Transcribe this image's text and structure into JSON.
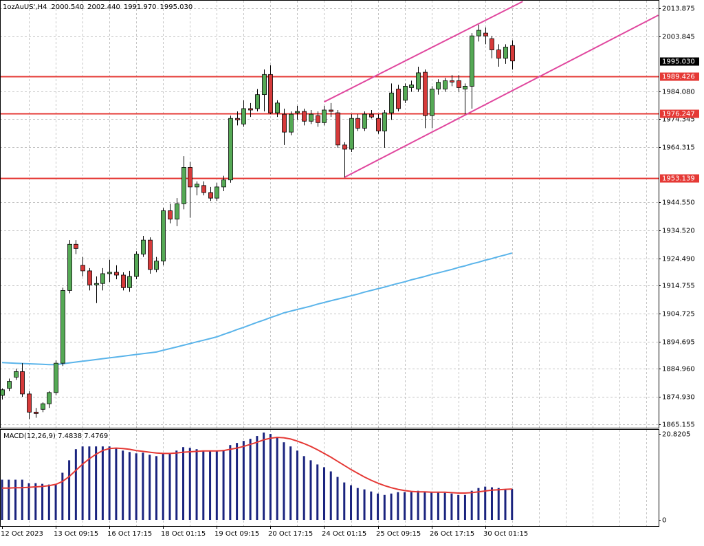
{
  "chart_data": {
    "type": "candlestick",
    "title": "1ozAuUS',H4",
    "header_values": [
      "2000.540",
      "2002.440",
      "1991.970",
      "1995.030"
    ],
    "categories": [
      "12 Oct 2023",
      null,
      null,
      null,
      null,
      null,
      null,
      null,
      "13 Oct 09:15",
      null,
      null,
      null,
      null,
      null,
      null,
      null,
      "16 Oct 17:15",
      null,
      null,
      null,
      null,
      null,
      null,
      null,
      "18 Oct 01:15",
      null,
      null,
      null,
      null,
      null,
      null,
      null,
      "19 Oct 09:15",
      null,
      null,
      null,
      null,
      null,
      null,
      null,
      "20 Oct 17:15",
      null,
      null,
      null,
      null,
      null,
      null,
      null,
      "24 Oct 01:15",
      null,
      null,
      null,
      null,
      null,
      null,
      null,
      "25 Oct 09:15",
      null,
      null,
      null,
      null,
      null,
      null,
      null,
      "26 Oct 17:15",
      null,
      null,
      null,
      null,
      null,
      null,
      null,
      "30 Oct 01:15",
      null,
      null,
      null,
      null
    ],
    "open": [
      1875.5,
      1878,
      1882,
      1884,
      1876,
      1869.5,
      1870.5,
      1872.5,
      1876.5,
      1887,
      1913,
      1929.5,
      1922,
      1920,
      1915,
      1915.5,
      1919,
      1919.5,
      1918.5,
      1914,
      1918,
      1926,
      1931,
      1920.5,
      1923.5,
      1941.5,
      1938.5,
      1944,
      1957,
      1950,
      1950.5,
      1948,
      1946,
      1950,
      1952.5,
      1974.5,
      1972.5,
      1978,
      1978,
      1983,
      1990.2,
      1976.5,
      1976,
      1969.6,
      1976.5,
      1977,
      1973.5,
      1975.5,
      1973,
      1977.5,
      1976.5,
      1965,
      1963.5,
      1974.5,
      1971,
      1976,
      1974.5,
      1970,
      1976.5,
      1985,
      1981,
      1985.5,
      1985,
      1991,
      1975.5,
      1985,
      1985,
      1988,
      1988,
      1985,
      1986,
      2004,
      2005,
      2003,
      1999,
      1996,
      2000.54
    ],
    "high": [
      1878,
      1881.5,
      1885,
      1887,
      1877,
      1871,
      1873,
      1877,
      1888,
      1914,
      1931,
      1931,
      1925,
      1921,
      1918,
      1921,
      1924,
      1922,
      1919.5,
      1920,
      1927,
      1932.5,
      1932,
      1925,
      1942.5,
      1944,
      1946,
      1961,
      1959,
      1952,
      1952,
      1950,
      1951.5,
      1954,
      1975.5,
      1977,
      1981,
      1980,
      1985,
      1992,
      1993.5,
      1981,
      1978,
      1977,
      1979,
      1978,
      1977.5,
      1977,
      1979,
      1980,
      1977.5,
      1966,
      1976,
      1976,
      1977,
      1977.5,
      1976,
      1977.5,
      1987,
      1986.5,
      1987,
      1988,
      1993,
      1992,
      1986,
      1988.5,
      1989,
      1990,
      1990,
      1987,
      2005,
      2008,
      2007,
      2004,
      2001,
      2001,
      2002.44
    ],
    "low": [
      1874,
      1877,
      1881,
      1875,
      1867,
      1867.5,
      1869.5,
      1871,
      1875.5,
      1886,
      1912,
      1926,
      1918,
      1913,
      1908.5,
      1913,
      1916,
      1917,
      1913,
      1912.5,
      1917,
      1925,
      1919,
      1919.5,
      1922,
      1937,
      1936,
      1942,
      1939,
      1947,
      1947,
      1945,
      1945,
      1948.5,
      1951.5,
      1972,
      1971.5,
      1975,
      1977,
      1977,
      1976,
      1975,
      1965,
      1968.5,
      1974,
      1972,
      1972.5,
      1971.5,
      1972,
      1975,
      1964,
      1953.4,
      1962.5,
      1970,
      1970,
      1974.5,
      1969,
      1964,
      1974,
      1977,
      1980,
      1984,
      1984,
      1971,
      1971,
      1983,
      1984,
      1986,
      1984,
      1976,
      1978,
      2002,
      2001,
      1996,
      1993,
      1994,
      1991.97
    ],
    "close": [
      1877.5,
      1880.5,
      1884,
      1876,
      1869.5,
      1869,
      1872.5,
      1876.5,
      1887,
      1913,
      1929.5,
      1928,
      1920,
      1915,
      1915.5,
      1919,
      1919.5,
      1918.5,
      1914,
      1918,
      1926,
      1931,
      1920.5,
      1923.5,
      1941.5,
      1938.5,
      1944,
      1957,
      1950,
      1951,
      1948,
      1946,
      1950,
      1952.5,
      1974.5,
      1974,
      1978,
      1977.5,
      1983,
      1990.2,
      1976.5,
      1980,
      1969.6,
      1976,
      1977,
      1973.5,
      1976,
      1973,
      1977.5,
      1977,
      1965,
      1963.5,
      1974.5,
      1971,
      1976,
      1975,
      1970,
      1976.5,
      1983.6,
      1978,
      1986,
      1986.5,
      1990.8,
      1975.5,
      1985,
      1987.4,
      1988,
      1987.5,
      1985.5,
      1986,
      2004,
      2006,
      2004,
      1999,
      1996,
      2000,
      1995.03
    ],
    "up_color": "#55a955",
    "down_color": "#d63a3a",
    "ma": {
      "color": "#5ab4ea",
      "values": [
        1887.2,
        1887.1,
        1887.0,
        1886.9,
        1886.8,
        1886.7,
        1886.6,
        1886.5,
        1886.5,
        1886.8,
        1887.1,
        1887.4,
        1887.7,
        1888.0,
        1888.3,
        1888.6,
        1888.9,
        1889.2,
        1889.5,
        1889.8,
        1890.1,
        1890.4,
        1890.7,
        1891.0,
        1891.6,
        1892.2,
        1892.8,
        1893.4,
        1894.0,
        1894.6,
        1895.2,
        1895.8,
        1896.4,
        1897.3,
        1898.1,
        1899.0,
        1899.8,
        1900.7,
        1901.6,
        1902.4,
        1903.3,
        1904.1,
        1905.0,
        1905.6,
        1906.2,
        1906.8,
        1907.4,
        1908.1,
        1908.7,
        1909.3,
        1909.9,
        1910.5,
        1911.1,
        1911.7,
        1912.4,
        1913.0,
        1913.6,
        1914.2,
        1914.9,
        1915.5,
        1916.1,
        1916.8,
        1917.4,
        1918.0,
        1918.7,
        1919.3,
        1919.9,
        1920.5,
        1921.2,
        1921.8,
        1922.5,
        1923.1,
        1923.8,
        1924.4,
        1925.1,
        1925.7,
        1926.4
      ]
    },
    "ylim": [
      1863.93,
      2016.83
    ],
    "yticks": [
      2013.875,
      2003.845,
      {
        "value": 1984.08,
        "label": "1984.080"
      },
      1974.345,
      1964.315,
      {
        "value": 1944.55,
        "label": "1944.550"
      },
      {
        "value": 1934.52,
        "label": "1934.520"
      },
      {
        "value": 1924.49,
        "label": "1924.490"
      },
      1914.755,
      1904.725,
      1894.695,
      {
        "value": 1884.96,
        "label": "1884.960"
      },
      {
        "value": 1874.93,
        "label": "1874.930"
      },
      1865.155
    ],
    "grid": true,
    "hlines": [
      {
        "value": 1989.426,
        "color": "#e53935"
      },
      {
        "value": 1976.247,
        "color": "#e53935"
      },
      {
        "value": 1953.139,
        "color": "#e53935"
      }
    ],
    "current_price": {
      "value": 1995.03,
      "label": "1995.030"
    },
    "trendlines": [
      {
        "color": "#e0479e",
        "x": [
          48,
          77.6
        ],
        "y": [
          1980.4,
          2016.3
        ]
      },
      {
        "color": "#e0479e",
        "x": [
          51,
          97.8
        ],
        "y": [
          1953.4,
          2011.4
        ]
      }
    ],
    "macd": {
      "title": "MACD(12,26,9) 7.4838 7.4769",
      "hist_color": "#1a237e",
      "signal_color": "#e53935",
      "histogram": [
        9.74,
        9.74,
        9.74,
        9.74,
        8.9,
        8.9,
        8.73,
        8.56,
        8.73,
        11.42,
        14.44,
        17.13,
        17.8,
        17.8,
        17.8,
        17.8,
        17.8,
        17.29,
        16.79,
        16.45,
        16.12,
        16.29,
        15.78,
        15.45,
        16.12,
        16.12,
        16.79,
        17.63,
        17.46,
        17.13,
        16.79,
        16.62,
        16.79,
        16.96,
        18.13,
        18.64,
        19.14,
        19.64,
        20.32,
        21.16,
        20.82,
        20.15,
        18.8,
        17.8,
        16.79,
        15.45,
        14.44,
        13.43,
        12.76,
        11.75,
        10.41,
        9.07,
        8.39,
        7.72,
        7.39,
        6.88,
        6.38,
        6.04,
        6.38,
        6.72,
        6.72,
        6.72,
        7.05,
        6.72,
        6.72,
        6.72,
        6.55,
        6.38,
        6.04,
        6.04,
        7.05,
        7.72,
        8.06,
        7.89,
        7.72,
        7.39,
        7.4838
      ],
      "signal": [
        7.7,
        7.7,
        7.8,
        7.8,
        7.9,
        8.0,
        8.1,
        8.3,
        8.6,
        9.3,
        10.5,
        12.0,
        13.5,
        14.8,
        15.9,
        16.8,
        17.3,
        17.4,
        17.3,
        17.1,
        16.8,
        16.6,
        16.4,
        16.2,
        16.1,
        16.1,
        16.2,
        16.4,
        16.5,
        16.6,
        16.7,
        16.7,
        16.7,
        16.8,
        17.1,
        17.4,
        17.8,
        18.3,
        18.8,
        19.4,
        19.8,
        20.0,
        19.9,
        19.6,
        19.1,
        18.5,
        17.8,
        17.0,
        16.1,
        15.2,
        14.2,
        13.2,
        12.2,
        11.3,
        10.4,
        9.6,
        8.9,
        8.3,
        7.8,
        7.4,
        7.1,
        6.9,
        6.8,
        6.8,
        6.7,
        6.7,
        6.7,
        6.6,
        6.5,
        6.5,
        6.6,
        6.8,
        7.0,
        7.2,
        7.3,
        7.4,
        7.4769
      ],
      "ylim": [
        -1.5,
        22.0
      ],
      "yticks": [
        20.8205,
        0
      ]
    }
  }
}
